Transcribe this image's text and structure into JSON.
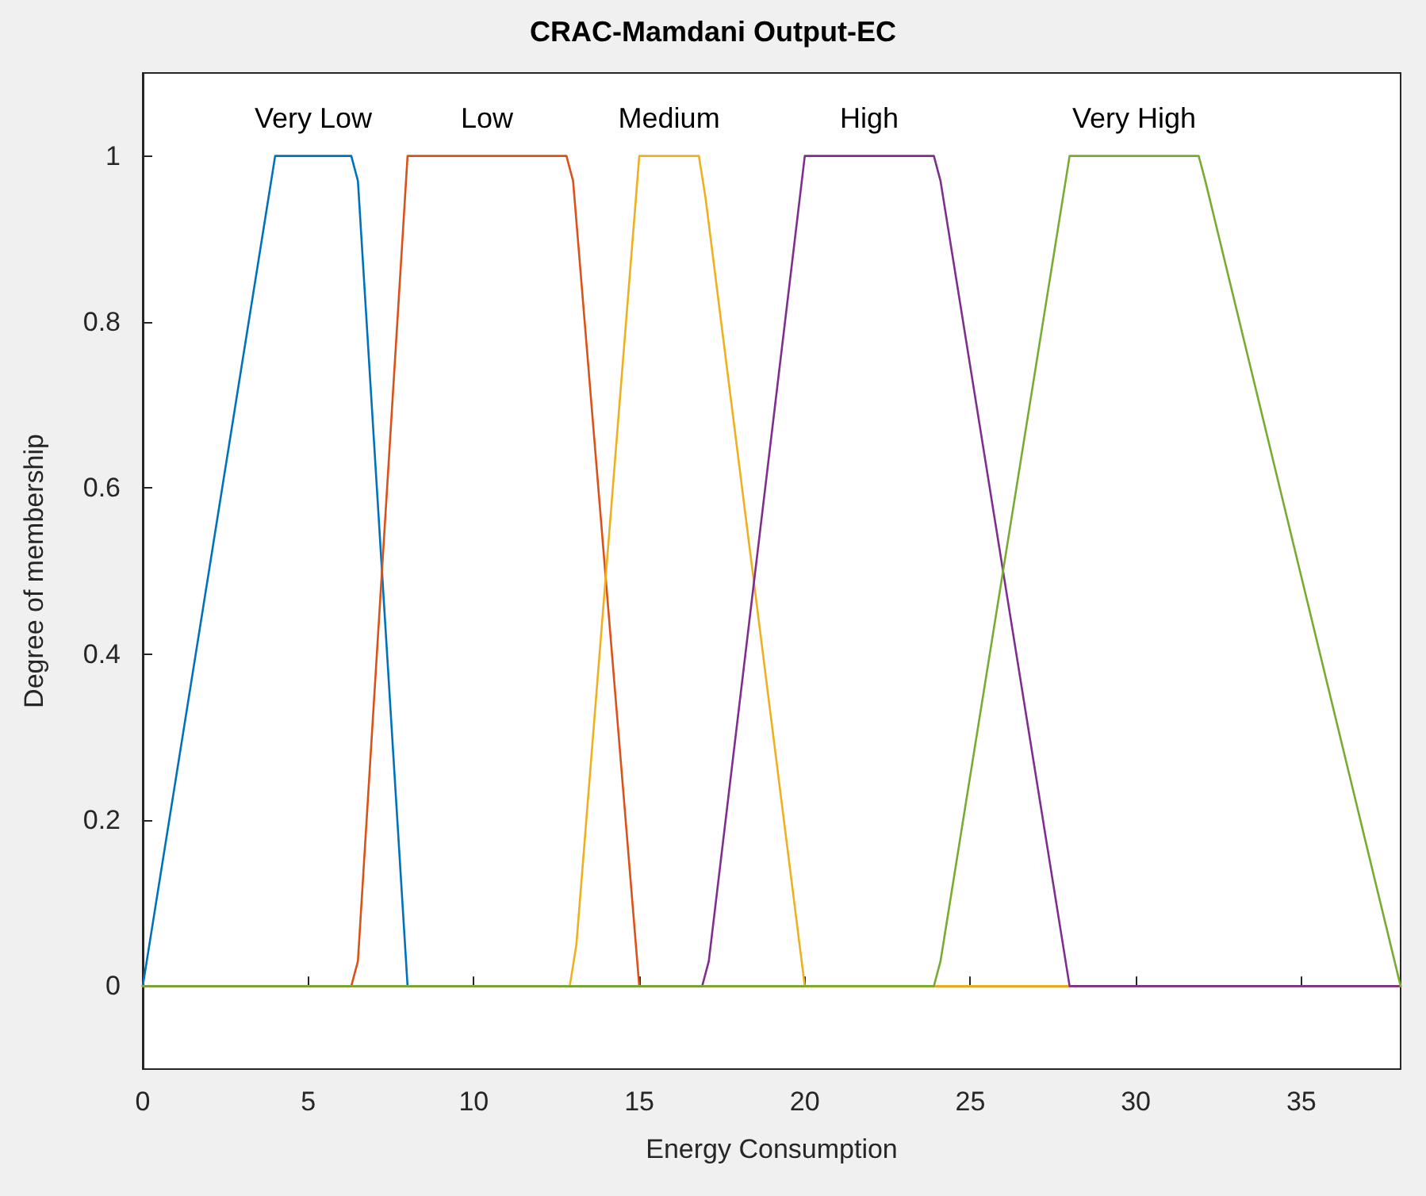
{
  "chart_data": {
    "type": "line",
    "title": "CRAC-Mamdani Output-EC",
    "xlabel": "Energy Consumption",
    "ylabel": "Degree of membership",
    "xlim": [
      0,
      38
    ],
    "xticks": [
      0,
      5,
      10,
      15,
      20,
      25,
      30,
      35
    ],
    "ylim": [
      -0.1,
      1.1
    ],
    "yticks": [
      0,
      0.2,
      0.4,
      0.6,
      0.8,
      1
    ],
    "grid": false,
    "legend": false,
    "marker": "none",
    "line_style": "solid",
    "series": [
      {
        "name": "Very Low",
        "color": "#0072bd",
        "x": [
          0,
          4,
          6.3,
          6.5,
          8,
          38
        ],
        "values": [
          0,
          1,
          1,
          0.97,
          0,
          0
        ]
      },
      {
        "name": "Low",
        "color": "#d95319",
        "x": [
          0,
          6.3,
          6.5,
          8,
          12.8,
          13,
          15,
          38
        ],
        "values": [
          0,
          0,
          0.03,
          1,
          1,
          0.97,
          0,
          0
        ]
      },
      {
        "name": "Medium",
        "color": "#edb120",
        "x": [
          0,
          12.9,
          13.1,
          15,
          16.8,
          17,
          20,
          38
        ],
        "values": [
          0,
          0,
          0.05,
          1,
          1,
          0.95,
          0,
          0
        ]
      },
      {
        "name": "High",
        "color": "#7e2f8e",
        "x": [
          0,
          16.9,
          17.1,
          20,
          23.9,
          24.1,
          28,
          38
        ],
        "values": [
          0,
          0,
          0.03,
          1,
          1,
          0.97,
          0,
          0
        ]
      },
      {
        "name": "Very High",
        "color": "#77ac30",
        "x": [
          0,
          23.9,
          24.1,
          28,
          31.9,
          32.1,
          38
        ],
        "values": [
          0,
          0,
          0.03,
          1,
          1,
          0.97,
          0
        ]
      }
    ]
  }
}
